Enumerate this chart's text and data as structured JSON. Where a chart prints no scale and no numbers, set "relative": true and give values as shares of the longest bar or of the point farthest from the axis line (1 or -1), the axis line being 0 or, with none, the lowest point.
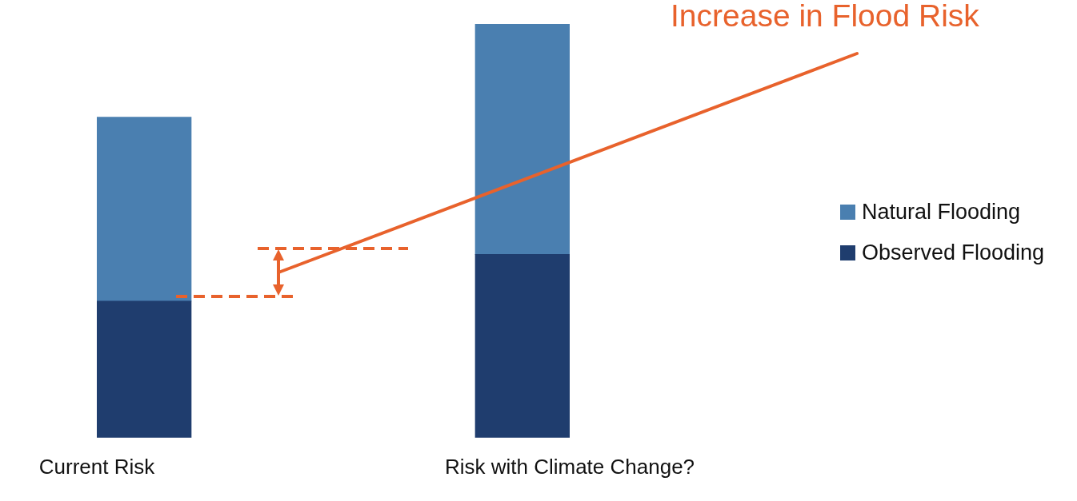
{
  "chart_data": {
    "type": "bar",
    "stacked": true,
    "relative": true,
    "categories": [
      "Current Risk",
      "Risk with Climate Change?"
    ],
    "series": [
      {
        "name": "Observed Flooding",
        "color": "#1f3d6e",
        "values": [
          0.33,
          0.443
        ]
      },
      {
        "name": "Natural Flooding",
        "color": "#4a7fb0",
        "values": [
          0.445,
          0.557
        ]
      }
    ],
    "legend": "right",
    "grid": false,
    "annotations": [
      "Increase in Flood Risk"
    ]
  }
}
